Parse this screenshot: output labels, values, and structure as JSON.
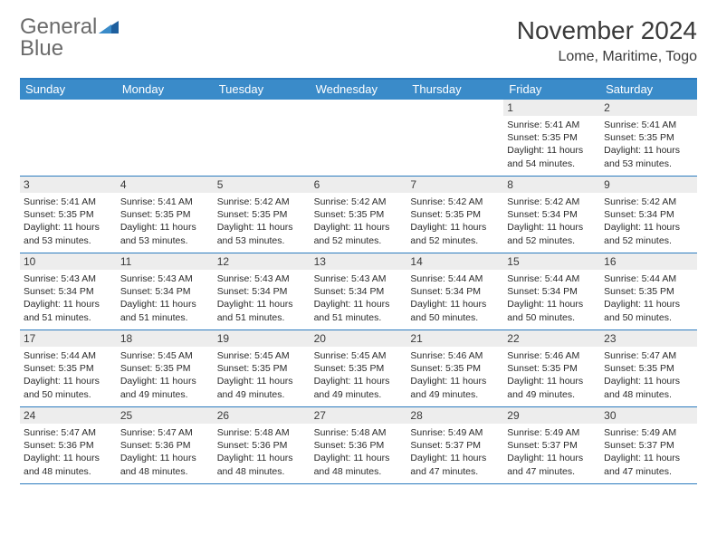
{
  "brand": {
    "part1": "General",
    "part2": "Blue"
  },
  "title": "November 2024",
  "location": "Lome, Maritime, Togo",
  "colors": {
    "header_bar": "#3a8bc9",
    "header_rule": "#2b7bbf",
    "daynum_bg": "#ededed",
    "text_dark": "#3a3a3a",
    "logo_gray": "#6b6b6b",
    "logo_blue": "#2b7bbf"
  },
  "dayNames": [
    "Sunday",
    "Monday",
    "Tuesday",
    "Wednesday",
    "Thursday",
    "Friday",
    "Saturday"
  ],
  "weeks": [
    [
      {
        "n": "",
        "sr": "",
        "ss": "",
        "dl": ""
      },
      {
        "n": "",
        "sr": "",
        "ss": "",
        "dl": ""
      },
      {
        "n": "",
        "sr": "",
        "ss": "",
        "dl": ""
      },
      {
        "n": "",
        "sr": "",
        "ss": "",
        "dl": ""
      },
      {
        "n": "",
        "sr": "",
        "ss": "",
        "dl": ""
      },
      {
        "n": "1",
        "sr": "Sunrise: 5:41 AM",
        "ss": "Sunset: 5:35 PM",
        "dl": "Daylight: 11 hours and 54 minutes."
      },
      {
        "n": "2",
        "sr": "Sunrise: 5:41 AM",
        "ss": "Sunset: 5:35 PM",
        "dl": "Daylight: 11 hours and 53 minutes."
      }
    ],
    [
      {
        "n": "3",
        "sr": "Sunrise: 5:41 AM",
        "ss": "Sunset: 5:35 PM",
        "dl": "Daylight: 11 hours and 53 minutes."
      },
      {
        "n": "4",
        "sr": "Sunrise: 5:41 AM",
        "ss": "Sunset: 5:35 PM",
        "dl": "Daylight: 11 hours and 53 minutes."
      },
      {
        "n": "5",
        "sr": "Sunrise: 5:42 AM",
        "ss": "Sunset: 5:35 PM",
        "dl": "Daylight: 11 hours and 53 minutes."
      },
      {
        "n": "6",
        "sr": "Sunrise: 5:42 AM",
        "ss": "Sunset: 5:35 PM",
        "dl": "Daylight: 11 hours and 52 minutes."
      },
      {
        "n": "7",
        "sr": "Sunrise: 5:42 AM",
        "ss": "Sunset: 5:35 PM",
        "dl": "Daylight: 11 hours and 52 minutes."
      },
      {
        "n": "8",
        "sr": "Sunrise: 5:42 AM",
        "ss": "Sunset: 5:34 PM",
        "dl": "Daylight: 11 hours and 52 minutes."
      },
      {
        "n": "9",
        "sr": "Sunrise: 5:42 AM",
        "ss": "Sunset: 5:34 PM",
        "dl": "Daylight: 11 hours and 52 minutes."
      }
    ],
    [
      {
        "n": "10",
        "sr": "Sunrise: 5:43 AM",
        "ss": "Sunset: 5:34 PM",
        "dl": "Daylight: 11 hours and 51 minutes."
      },
      {
        "n": "11",
        "sr": "Sunrise: 5:43 AM",
        "ss": "Sunset: 5:34 PM",
        "dl": "Daylight: 11 hours and 51 minutes."
      },
      {
        "n": "12",
        "sr": "Sunrise: 5:43 AM",
        "ss": "Sunset: 5:34 PM",
        "dl": "Daylight: 11 hours and 51 minutes."
      },
      {
        "n": "13",
        "sr": "Sunrise: 5:43 AM",
        "ss": "Sunset: 5:34 PM",
        "dl": "Daylight: 11 hours and 51 minutes."
      },
      {
        "n": "14",
        "sr": "Sunrise: 5:44 AM",
        "ss": "Sunset: 5:34 PM",
        "dl": "Daylight: 11 hours and 50 minutes."
      },
      {
        "n": "15",
        "sr": "Sunrise: 5:44 AM",
        "ss": "Sunset: 5:34 PM",
        "dl": "Daylight: 11 hours and 50 minutes."
      },
      {
        "n": "16",
        "sr": "Sunrise: 5:44 AM",
        "ss": "Sunset: 5:35 PM",
        "dl": "Daylight: 11 hours and 50 minutes."
      }
    ],
    [
      {
        "n": "17",
        "sr": "Sunrise: 5:44 AM",
        "ss": "Sunset: 5:35 PM",
        "dl": "Daylight: 11 hours and 50 minutes."
      },
      {
        "n": "18",
        "sr": "Sunrise: 5:45 AM",
        "ss": "Sunset: 5:35 PM",
        "dl": "Daylight: 11 hours and 49 minutes."
      },
      {
        "n": "19",
        "sr": "Sunrise: 5:45 AM",
        "ss": "Sunset: 5:35 PM",
        "dl": "Daylight: 11 hours and 49 minutes."
      },
      {
        "n": "20",
        "sr": "Sunrise: 5:45 AM",
        "ss": "Sunset: 5:35 PM",
        "dl": "Daylight: 11 hours and 49 minutes."
      },
      {
        "n": "21",
        "sr": "Sunrise: 5:46 AM",
        "ss": "Sunset: 5:35 PM",
        "dl": "Daylight: 11 hours and 49 minutes."
      },
      {
        "n": "22",
        "sr": "Sunrise: 5:46 AM",
        "ss": "Sunset: 5:35 PM",
        "dl": "Daylight: 11 hours and 49 minutes."
      },
      {
        "n": "23",
        "sr": "Sunrise: 5:47 AM",
        "ss": "Sunset: 5:35 PM",
        "dl": "Daylight: 11 hours and 48 minutes."
      }
    ],
    [
      {
        "n": "24",
        "sr": "Sunrise: 5:47 AM",
        "ss": "Sunset: 5:36 PM",
        "dl": "Daylight: 11 hours and 48 minutes."
      },
      {
        "n": "25",
        "sr": "Sunrise: 5:47 AM",
        "ss": "Sunset: 5:36 PM",
        "dl": "Daylight: 11 hours and 48 minutes."
      },
      {
        "n": "26",
        "sr": "Sunrise: 5:48 AM",
        "ss": "Sunset: 5:36 PM",
        "dl": "Daylight: 11 hours and 48 minutes."
      },
      {
        "n": "27",
        "sr": "Sunrise: 5:48 AM",
        "ss": "Sunset: 5:36 PM",
        "dl": "Daylight: 11 hours and 48 minutes."
      },
      {
        "n": "28",
        "sr": "Sunrise: 5:49 AM",
        "ss": "Sunset: 5:37 PM",
        "dl": "Daylight: 11 hours and 47 minutes."
      },
      {
        "n": "29",
        "sr": "Sunrise: 5:49 AM",
        "ss": "Sunset: 5:37 PM",
        "dl": "Daylight: 11 hours and 47 minutes."
      },
      {
        "n": "30",
        "sr": "Sunrise: 5:49 AM",
        "ss": "Sunset: 5:37 PM",
        "dl": "Daylight: 11 hours and 47 minutes."
      }
    ]
  ]
}
